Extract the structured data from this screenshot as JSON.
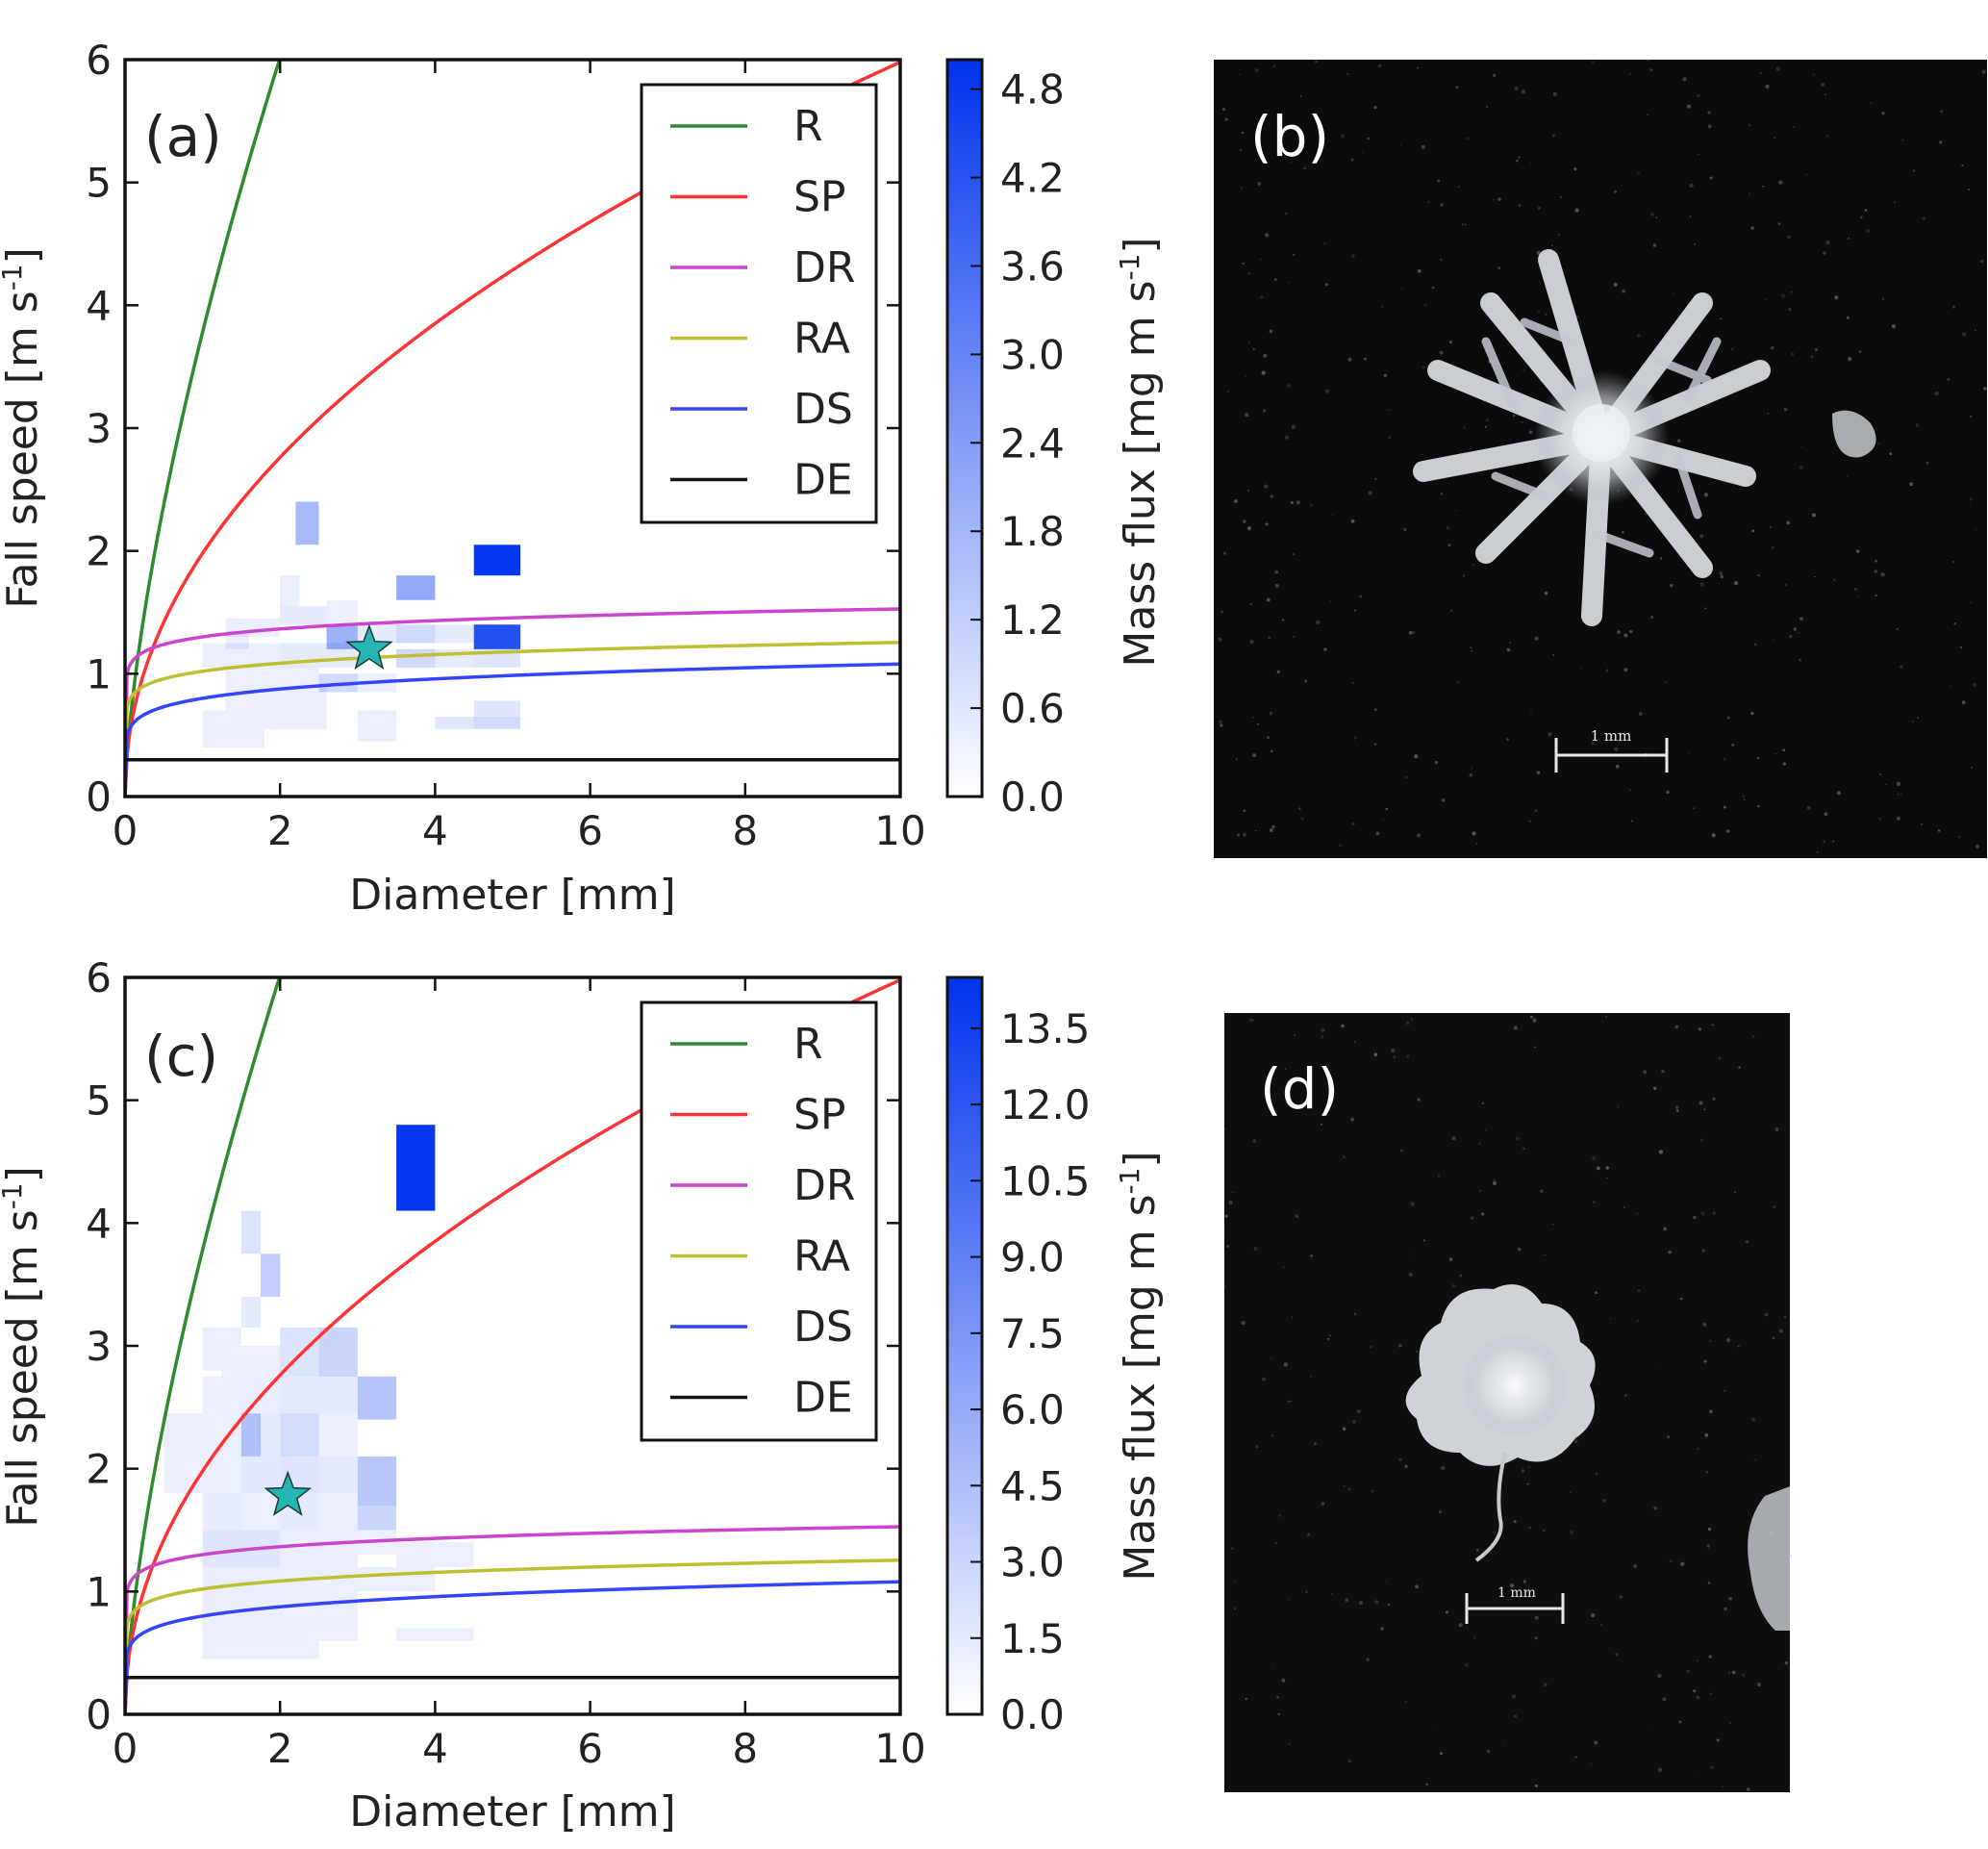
{
  "figure": {
    "panel_labels": {
      "a": "(a)",
      "b": "(b)",
      "c": "(c)",
      "d": "(d)"
    },
    "scale_bar_text": "1 mm"
  },
  "legend_entries": [
    {
      "name": "R",
      "color": "#2e8b2e"
    },
    {
      "name": "SP",
      "color": "#ff3333"
    },
    {
      "name": "DR",
      "color": "#cc44cc"
    },
    {
      "name": "RA",
      "color": "#bfbf33"
    },
    {
      "name": "DS",
      "color": "#3344ff"
    },
    {
      "name": "DE",
      "color": "#111111"
    }
  ],
  "star_color": "#26b5b0",
  "chart_data": [
    {
      "type": "heatmap",
      "panel": "(a)",
      "xlabel": "Diameter [mm]",
      "ylabel": "Fall speed [m s-1]",
      "ylabel_main": "Fall speed [m s",
      "ylabel_sup": "-1",
      "ylabel_end": "]",
      "xlim": [
        0,
        10
      ],
      "ylim": [
        0,
        6
      ],
      "xticks": [
        0,
        2,
        4,
        6,
        8,
        10
      ],
      "yticks": [
        0,
        1,
        2,
        3,
        4,
        5,
        6
      ],
      "colorbar": {
        "label": "Mass flux [mg m s-1]",
        "label_main": "Mass flux [mg m s",
        "label_sup": "-1",
        "label_end": "]",
        "range": [
          0,
          5.0
        ],
        "ticks": [
          "0.0",
          "0.6",
          "1.2",
          "1.8",
          "2.4",
          "3.0",
          "3.6",
          "4.2",
          "4.8"
        ],
        "color": "#0033ee"
      },
      "legend_position": "upper-right",
      "star": {
        "x": 3.15,
        "y": 1.2
      },
      "cells": [
        {
          "x0": 2.2,
          "x1": 2.5,
          "y0": 2.05,
          "y1": 2.4,
          "v": 1.7
        },
        {
          "x0": 4.5,
          "x1": 5.1,
          "y0": 1.8,
          "y1": 2.05,
          "v": 4.9
        },
        {
          "x0": 3.5,
          "x1": 4.0,
          "y0": 1.6,
          "y1": 1.8,
          "v": 2.1
        },
        {
          "x0": 2.0,
          "x1": 2.25,
          "y0": 1.55,
          "y1": 1.8,
          "v": 0.4
        },
        {
          "x0": 2.0,
          "x1": 2.6,
          "y0": 1.4,
          "y1": 1.55,
          "v": 0.5
        },
        {
          "x0": 2.6,
          "x1": 3.0,
          "y0": 1.4,
          "y1": 1.6,
          "v": 0.4
        },
        {
          "x0": 1.3,
          "x1": 2.0,
          "y0": 1.3,
          "y1": 1.45,
          "v": 0.3
        },
        {
          "x0": 1.3,
          "x1": 1.6,
          "y0": 1.2,
          "y1": 1.35,
          "v": 0.4
        },
        {
          "x0": 2.6,
          "x1": 3.0,
          "y0": 1.2,
          "y1": 1.4,
          "v": 1.9
        },
        {
          "x0": 3.0,
          "x1": 3.5,
          "y0": 1.25,
          "y1": 1.4,
          "v": 0.5
        },
        {
          "x0": 3.5,
          "x1": 4.0,
          "y0": 1.25,
          "y1": 1.4,
          "v": 0.9
        },
        {
          "x0": 4.0,
          "x1": 4.5,
          "y0": 1.25,
          "y1": 1.4,
          "v": 0.5
        },
        {
          "x0": 4.5,
          "x1": 5.1,
          "y0": 1.2,
          "y1": 1.4,
          "v": 4.3
        },
        {
          "x0": 1.0,
          "x1": 2.0,
          "y0": 1.05,
          "y1": 1.25,
          "v": 0.3
        },
        {
          "x0": 2.0,
          "x1": 3.0,
          "y0": 1.05,
          "y1": 1.25,
          "v": 0.5
        },
        {
          "x0": 3.5,
          "x1": 4.0,
          "y0": 1.05,
          "y1": 1.2,
          "v": 0.9
        },
        {
          "x0": 4.0,
          "x1": 4.5,
          "y0": 1.05,
          "y1": 1.2,
          "v": 0.5
        },
        {
          "x0": 4.5,
          "x1": 5.1,
          "y0": 1.05,
          "y1": 1.2,
          "v": 0.6
        },
        {
          "x0": 1.3,
          "x1": 2.0,
          "y0": 0.9,
          "y1": 1.05,
          "v": 0.25
        },
        {
          "x0": 2.0,
          "x1": 2.5,
          "y0": 0.9,
          "y1": 1.05,
          "v": 0.3
        },
        {
          "x0": 2.5,
          "x1": 3.0,
          "y0": 0.85,
          "y1": 1.0,
          "v": 0.9
        },
        {
          "x0": 3.0,
          "x1": 3.5,
          "y0": 0.85,
          "y1": 1.0,
          "v": 0.35
        },
        {
          "x0": 1.3,
          "x1": 2.0,
          "y0": 0.7,
          "y1": 0.9,
          "v": 0.2
        },
        {
          "x0": 2.0,
          "x1": 2.6,
          "y0": 0.75,
          "y1": 0.9,
          "v": 0.25
        },
        {
          "x0": 2.0,
          "x1": 2.6,
          "y0": 0.55,
          "y1": 0.75,
          "v": 0.25
        },
        {
          "x0": 1.0,
          "x1": 2.0,
          "y0": 0.55,
          "y1": 0.7,
          "v": 0.2
        },
        {
          "x0": 3.0,
          "x1": 3.5,
          "y0": 0.55,
          "y1": 0.7,
          "v": 0.25
        },
        {
          "x0": 4.5,
          "x1": 5.1,
          "y0": 0.65,
          "y1": 0.78,
          "v": 0.6
        },
        {
          "x0": 4.0,
          "x1": 4.5,
          "y0": 0.55,
          "y1": 0.65,
          "v": 0.6
        },
        {
          "x0": 4.5,
          "x1": 5.1,
          "y0": 0.55,
          "y1": 0.65,
          "v": 0.9
        },
        {
          "x0": 1.0,
          "x1": 1.8,
          "y0": 0.4,
          "y1": 0.55,
          "v": 0.15
        },
        {
          "x0": 3.0,
          "x1": 3.5,
          "y0": 0.45,
          "y1": 0.55,
          "v": 0.3
        }
      ]
    },
    {
      "type": "heatmap",
      "panel": "(c)",
      "xlabel": "Diameter [mm]",
      "ylabel": "Fall speed [m s-1]",
      "ylabel_main": "Fall speed [m s",
      "ylabel_sup": "-1",
      "ylabel_end": "]",
      "xlim": [
        0,
        10
      ],
      "ylim": [
        0,
        6
      ],
      "xticks": [
        0,
        2,
        4,
        6,
        8,
        10
      ],
      "yticks": [
        0,
        1,
        2,
        3,
        4,
        5,
        6
      ],
      "colorbar": {
        "label": "Mass flux [mg m s-1]",
        "label_main": "Mass flux [mg m s",
        "label_sup": "-1",
        "label_end": "]",
        "range": [
          0,
          14.5
        ],
        "ticks": [
          "0.0",
          "1.5",
          "3.0",
          "4.5",
          "6.0",
          "7.5",
          "9.0",
          "10.5",
          "12.0",
          "13.5"
        ],
        "color": "#0033ee"
      },
      "legend_position": "upper-right",
      "star": {
        "x": 2.1,
        "y": 1.78
      },
      "cells": [
        {
          "x0": 3.5,
          "x1": 4.0,
          "y0": 4.1,
          "y1": 4.8,
          "v": 14.2
        },
        {
          "x0": 1.5,
          "x1": 1.75,
          "y0": 3.75,
          "y1": 4.1,
          "v": 2.0
        },
        {
          "x0": 1.75,
          "x1": 2.0,
          "y0": 3.4,
          "y1": 3.75,
          "v": 3.5
        },
        {
          "x0": 1.5,
          "x1": 1.75,
          "y0": 3.15,
          "y1": 3.4,
          "v": 1.5
        },
        {
          "x0": 1.0,
          "x1": 1.25,
          "y0": 2.8,
          "y1": 3.15,
          "v": 1.0
        },
        {
          "x0": 1.25,
          "x1": 1.5,
          "y0": 2.75,
          "y1": 3.15,
          "v": 0.8
        },
        {
          "x0": 1.5,
          "x1": 2.0,
          "y0": 2.75,
          "y1": 3.0,
          "v": 1.0
        },
        {
          "x0": 2.0,
          "x1": 2.5,
          "y0": 2.75,
          "y1": 3.15,
          "v": 2.0
        },
        {
          "x0": 2.5,
          "x1": 3.0,
          "y0": 2.75,
          "y1": 3.15,
          "v": 3.0
        },
        {
          "x0": 1.0,
          "x1": 1.5,
          "y0": 2.45,
          "y1": 2.75,
          "v": 0.8
        },
        {
          "x0": 1.5,
          "x1": 2.0,
          "y0": 2.45,
          "y1": 2.75,
          "v": 1.2
        },
        {
          "x0": 2.0,
          "x1": 3.0,
          "y0": 2.45,
          "y1": 2.75,
          "v": 1.5
        },
        {
          "x0": 3.0,
          "x1": 3.5,
          "y0": 2.4,
          "y1": 2.75,
          "v": 4.2
        },
        {
          "x0": 0.5,
          "x1": 1.5,
          "y0": 2.1,
          "y1": 2.45,
          "v": 0.8
        },
        {
          "x0": 1.5,
          "x1": 1.75,
          "y0": 2.1,
          "y1": 2.45,
          "v": 4.5
        },
        {
          "x0": 1.75,
          "x1": 2.0,
          "y0": 2.1,
          "y1": 2.45,
          "v": 1.5
        },
        {
          "x0": 2.0,
          "x1": 2.5,
          "y0": 2.1,
          "y1": 2.45,
          "v": 2.5
        },
        {
          "x0": 2.5,
          "x1": 3.0,
          "y0": 2.1,
          "y1": 2.45,
          "v": 1.0
        },
        {
          "x0": 0.5,
          "x1": 1.0,
          "y0": 1.8,
          "y1": 2.1,
          "v": 0.7
        },
        {
          "x0": 1.0,
          "x1": 1.5,
          "y0": 1.8,
          "y1": 2.1,
          "v": 0.6
        },
        {
          "x0": 1.5,
          "x1": 2.0,
          "y0": 1.8,
          "y1": 2.1,
          "v": 1.6
        },
        {
          "x0": 2.0,
          "x1": 2.5,
          "y0": 1.8,
          "y1": 2.1,
          "v": 1.8
        },
        {
          "x0": 2.5,
          "x1": 3.0,
          "y0": 1.8,
          "y1": 2.1,
          "v": 1.5
        },
        {
          "x0": 3.0,
          "x1": 3.5,
          "y0": 1.7,
          "y1": 2.1,
          "v": 4.0
        },
        {
          "x0": 1.0,
          "x1": 1.5,
          "y0": 1.5,
          "y1": 1.8,
          "v": 1.3
        },
        {
          "x0": 1.5,
          "x1": 2.0,
          "y0": 1.5,
          "y1": 1.8,
          "v": 1.0
        },
        {
          "x0": 2.0,
          "x1": 2.5,
          "y0": 1.5,
          "y1": 1.8,
          "v": 1.5
        },
        {
          "x0": 2.5,
          "x1": 3.0,
          "y0": 1.5,
          "y1": 1.8,
          "v": 1.0
        },
        {
          "x0": 3.0,
          "x1": 3.5,
          "y0": 1.5,
          "y1": 1.7,
          "v": 3.0
        },
        {
          "x0": 1.0,
          "x1": 2.0,
          "y0": 1.2,
          "y1": 1.5,
          "v": 1.8
        },
        {
          "x0": 2.0,
          "x1": 3.0,
          "y0": 1.2,
          "y1": 1.5,
          "v": 1.2
        },
        {
          "x0": 3.0,
          "x1": 3.5,
          "y0": 1.3,
          "y1": 1.5,
          "v": 0.8
        },
        {
          "x0": 3.5,
          "x1": 4.5,
          "y0": 1.2,
          "y1": 1.4,
          "v": 0.7
        },
        {
          "x0": 1.0,
          "x1": 2.0,
          "y0": 0.9,
          "y1": 1.2,
          "v": 1.2
        },
        {
          "x0": 2.0,
          "x1": 3.0,
          "y0": 0.9,
          "y1": 1.2,
          "v": 0.8
        },
        {
          "x0": 3.0,
          "x1": 4.0,
          "y0": 1.0,
          "y1": 1.2,
          "v": 0.6
        },
        {
          "x0": 1.0,
          "x1": 2.0,
          "y0": 0.6,
          "y1": 0.9,
          "v": 0.9
        },
        {
          "x0": 2.0,
          "x1": 3.0,
          "y0": 0.6,
          "y1": 0.9,
          "v": 0.6
        },
        {
          "x0": 1.0,
          "x1": 2.0,
          "y0": 0.45,
          "y1": 0.6,
          "v": 0.5
        },
        {
          "x0": 2.0,
          "x1": 2.5,
          "y0": 0.45,
          "y1": 0.6,
          "v": 0.4
        },
        {
          "x0": 3.5,
          "x1": 4.5,
          "y0": 0.6,
          "y1": 0.7,
          "v": 0.5
        }
      ]
    }
  ]
}
